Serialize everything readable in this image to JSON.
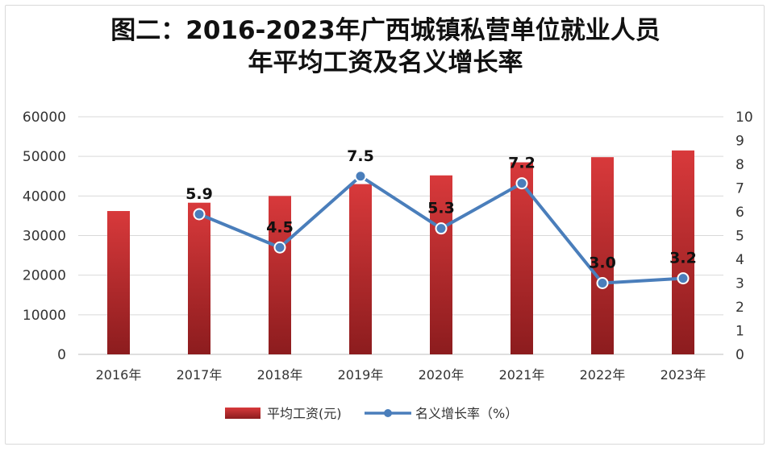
{
  "chart_data": {
    "type": "bar+line",
    "title_line1": "图二：2016-2023年广西城镇私营单位就业人员",
    "title_line2": "年平均工资及名义增长率",
    "categories": [
      "2016年",
      "2017年",
      "2018年",
      "2019年",
      "2020年",
      "2021年",
      "2022年",
      "2023年"
    ],
    "series": [
      {
        "name": "平均工资(元)",
        "type": "bar",
        "axis": "left",
        "color": "#c0282a",
        "values": [
          36200,
          38300,
          40000,
          43000,
          45200,
          48500,
          49800,
          51500
        ]
      },
      {
        "name": "名义增长率（%）",
        "type": "line",
        "axis": "right",
        "color": "#4a7ebb",
        "values": [
          null,
          5.9,
          4.5,
          7.5,
          5.3,
          7.2,
          3.0,
          3.2
        ],
        "data_labels": [
          "",
          "5.9",
          "4.5",
          "7.5",
          "5.3",
          "7.2",
          "3.0",
          "3.2"
        ]
      }
    ],
    "y_left": {
      "min": 0,
      "max": 60000,
      "ticks": [
        "0",
        "10000",
        "20000",
        "30000",
        "40000",
        "50000",
        "60000"
      ]
    },
    "y_right": {
      "min": 0,
      "max": 10,
      "ticks": [
        "0",
        "1",
        "2",
        "3",
        "4",
        "5",
        "6",
        "7",
        "8",
        "9",
        "10"
      ]
    },
    "grid": true,
    "legend_position": "bottom-center"
  }
}
